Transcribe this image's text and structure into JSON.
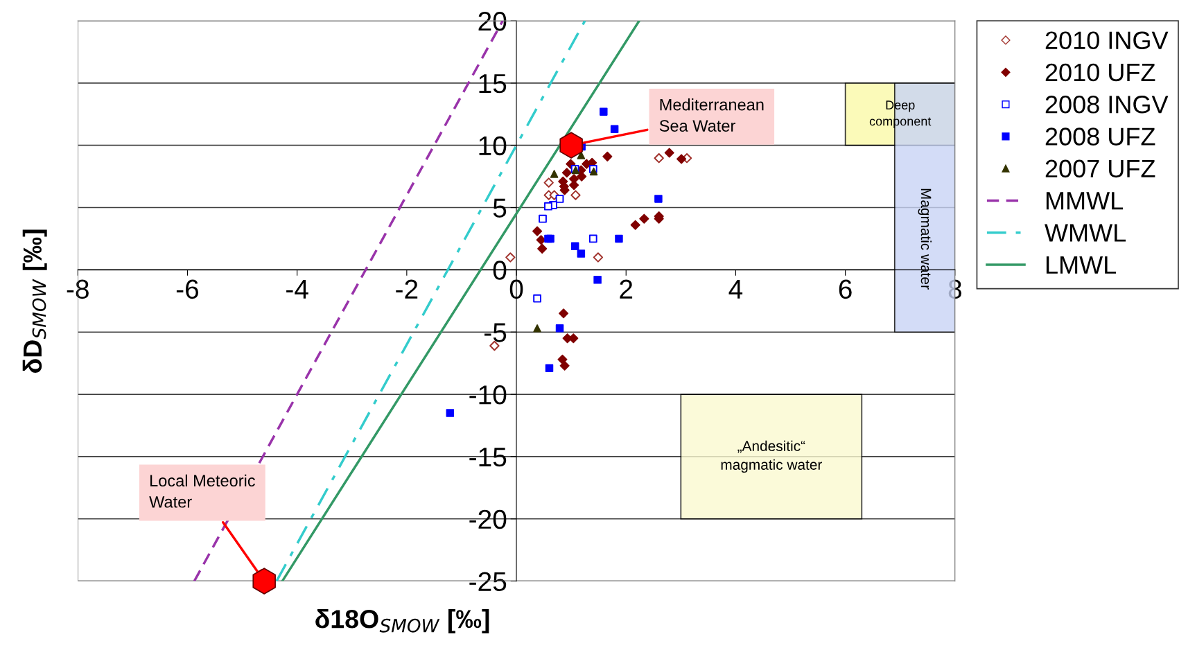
{
  "chart_data": {
    "type": "scatter",
    "xlabel": "δ18O$_{SMOW}$ [‰]",
    "ylabel": "δD$_{SMOW}$ [‰]",
    "xlim": [
      -8,
      8
    ],
    "ylim": [
      -25,
      20
    ],
    "xticks": [
      -8,
      -6,
      -4,
      -2,
      0,
      2,
      4,
      6,
      8
    ],
    "yticks": [
      -25,
      -20,
      -15,
      -10,
      -5,
      0,
      5,
      10,
      15,
      20
    ],
    "grid": "y",
    "legend": "right",
    "series": [
      {
        "type": "area",
        "color": "#fbf9a8",
        "x": [
          6,
          6,
          8,
          8
        ],
        "values": [
          10,
          15,
          15,
          10
        ]
      },
      {
        "type": "area",
        "color": "#c9d4f5",
        "x": [
          6.9,
          6.9,
          8,
          8
        ],
        "values": [
          -5,
          15,
          15,
          -5
        ]
      },
      {
        "type": "area",
        "color": "#fbfad0",
        "x": [
          3,
          3,
          6.3,
          6.3
        ],
        "values": [
          -20,
          -10,
          -10,
          -20
        ]
      },
      {
        "name": "2010 INGV",
        "marker": "diamond",
        "color": "#a0302a",
        "x": [
          2.6,
          3.11,
          0.59,
          0.59,
          0.69,
          1.08,
          -0.11,
          1.49,
          -0.4
        ],
        "values": [
          8.97,
          8.97,
          7.0,
          6.0,
          6.0,
          6.0,
          1.0,
          1.0,
          -6.1
        ]
      },
      {
        "name": "2010 UFZ",
        "marker": "diamond",
        "color": "#800000",
        "x": [
          2.79,
          3.01,
          1.66,
          0.99,
          1.28,
          1.38,
          1.18,
          0.92,
          1.05,
          0.85,
          1.19,
          1.05,
          0.87,
          0.88,
          2.17,
          2.33,
          2.6,
          2.6,
          0.38,
          0.45,
          0.47,
          0.86,
          0.93,
          1.04,
          0.84,
          0.88
        ],
        "values": [
          9.4,
          8.9,
          9.1,
          8.5,
          8.5,
          8.6,
          8.0,
          7.8,
          7.3,
          7.1,
          7.5,
          6.8,
          6.7,
          6.4,
          3.6,
          4.1,
          4.3,
          4.1,
          3.1,
          2.4,
          1.7,
          -3.5,
          -5.5,
          -5.5,
          -7.2,
          -7.7
        ]
      },
      {
        "name": "2008 INGV",
        "marker": "square",
        "color": "#0000ff",
        "x": [
          1.07,
          1.4,
          0.79,
          0.67,
          0.58,
          0.48,
          1.4,
          0.38
        ],
        "values": [
          8.1,
          8.1,
          5.7,
          5.2,
          5.1,
          4.1,
          2.5,
          -2.3
        ]
      },
      {
        "name": "2008 UFZ",
        "marker": "square",
        "color": "#0000ff",
        "x": [
          1.59,
          1.79,
          1.19,
          2.59,
          0.62,
          0.58,
          1.87,
          1.07,
          1.18,
          1.48,
          0.79,
          0.6,
          -1.21
        ],
        "values": [
          12.7,
          11.3,
          9.9,
          5.7,
          2.5,
          2.5,
          2.5,
          1.9,
          1.3,
          -0.8,
          -4.7,
          -7.9,
          -11.5
        ]
      },
      {
        "name": "2007 UFZ",
        "marker": "triangle",
        "color": "#333300",
        "x": [
          1.18,
          0.69,
          1.08,
          1.41,
          0.38
        ],
        "values": [
          9.2,
          7.7,
          8.0,
          7.9,
          -4.7
        ]
      },
      {
        "name": "MMWL",
        "type": "line",
        "line_style": "dashed",
        "color": "#9933aa",
        "x": [
          -5.875,
          -0.25
        ],
        "values": [
          -25,
          20
        ]
      },
      {
        "name": "WMWL",
        "type": "line",
        "line_style": "dashdot",
        "color": "#33cccc",
        "x": [
          -4.375,
          1.25
        ],
        "values": [
          -25,
          20
        ]
      },
      {
        "name": "LMWL",
        "type": "line",
        "line_style": "solid",
        "color": "#339966",
        "x": [
          -4.27,
          2.24
        ],
        "values": [
          -25,
          20
        ]
      },
      {
        "color": "#ff0000",
        "x": [
          1,
          -4.6
        ],
        "values": [
          10,
          -25
        ]
      }
    ],
    "annotations": [
      {
        "text": "Mediterranean\nSea Water",
        "x": 1,
        "y": 10
      },
      {
        "text": "Local Meteoric\nWater",
        "x": -4.6,
        "y": -25
      },
      "Deep\ncomponent",
      "Magmatic water",
      "„Andesitic“\nmagmatic water"
    ]
  }
}
